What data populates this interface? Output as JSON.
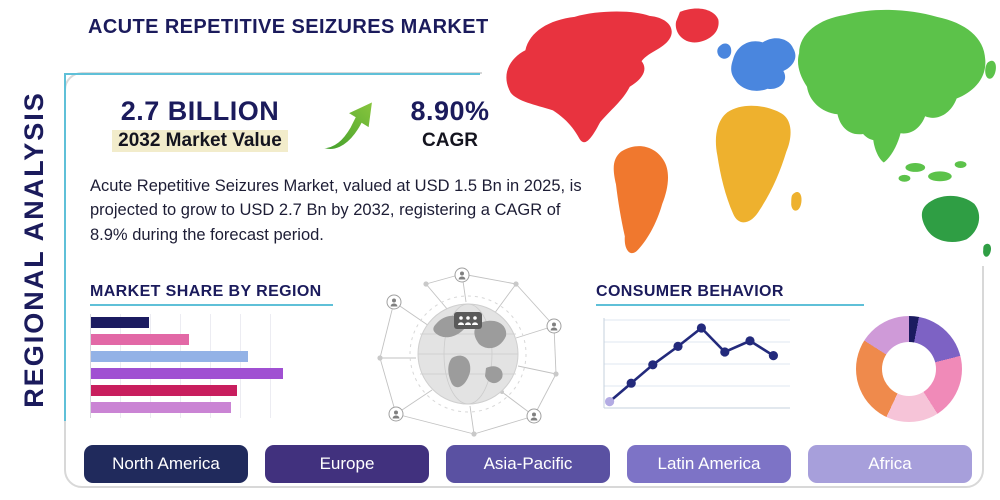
{
  "title": "ACUTE REPETITIVE SEIZURES MARKET",
  "side_label": "REGIONAL ANALYSIS",
  "stats": {
    "market_value": "2.7 BILLION",
    "market_value_label": "2032 Market Value",
    "cagr_value": "8.90%",
    "cagr_label": "CAGR"
  },
  "description": "Acute Repetitive Seizures Market, valued at USD 1.5 Bn in 2025, is projected to grow to USD 2.7 Bn by 2032, registering a CAGR of 8.9% during the forecast period.",
  "sections": {
    "market_share_heading": "MARKET SHARE BY REGION",
    "consumer_behavior_heading": "CONSUMER BEHAVIOR"
  },
  "region_buttons": [
    {
      "label": "North America",
      "color": "#202a5c"
    },
    {
      "label": "Europe",
      "color": "#41317e"
    },
    {
      "label": "Asia-Pacific",
      "color": "#5a51a2"
    },
    {
      "label": "Latin America",
      "color": "#7d73c6"
    },
    {
      "label": "Africa",
      "color": "#a79fdb"
    }
  ],
  "chart_data": [
    {
      "type": "bar",
      "title": "MARKET SHARE BY REGION",
      "orientation": "horizontal",
      "values_pct_of_max": [
        30,
        51,
        82,
        100,
        76,
        73
      ],
      "colors": [
        "#1b1b60",
        "#e268a6",
        "#93b2e6",
        "#a050d2",
        "#c81e5e",
        "#ca84d4"
      ],
      "grid": true,
      "legend": "none"
    },
    {
      "type": "line",
      "title": "CONSUMER BEHAVIOR",
      "points_pct": [
        [
          2,
          8
        ],
        [
          14,
          28
        ],
        [
          26,
          48
        ],
        [
          40,
          68
        ],
        [
          53,
          88
        ],
        [
          66,
          62
        ],
        [
          80,
          74
        ],
        [
          93,
          58
        ]
      ],
      "line_color": "#232a7c",
      "point_color": "#232a7c",
      "start_point_color": "#b3abe3",
      "grid": true,
      "legend": "none"
    },
    {
      "type": "pie",
      "style": "donut",
      "segments": [
        {
          "color": "#1b1b60",
          "value": 3
        },
        {
          "color": "#7d62c4",
          "value": 18
        },
        {
          "color": "#f08ab8",
          "value": 20
        },
        {
          "color": "#f6c4d8",
          "value": 16
        },
        {
          "color": "#ef8a4c",
          "value": 27
        },
        {
          "color": "#cf9ad8",
          "value": 16
        }
      ],
      "legend": "none"
    }
  ],
  "map": {
    "region_colors": {
      "north_america": "#e8333f",
      "greenland": "#e8333f",
      "south_america": "#f0782e",
      "europe": "#4a86de",
      "africa": "#eeb12e",
      "asia": "#5cc24a",
      "australia": "#2f9e44"
    }
  },
  "accent": {
    "navy": "#1b1b5c",
    "teal": "#5fc0d8",
    "green": "#56b02e",
    "frame_gray": "#d8d8d8"
  }
}
